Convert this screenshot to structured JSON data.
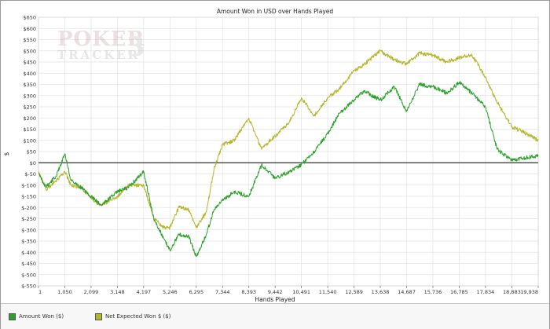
{
  "chart_data": {
    "type": "line",
    "title": "Amount Won in USD over Hands Played",
    "xlabel": "Hands Played",
    "ylabel": "$",
    "xlim": [
      1,
      19938
    ],
    "ylim": [
      -550,
      650
    ],
    "x_ticks": [
      1,
      1050,
      2099,
      3148,
      4197,
      5246,
      6295,
      7344,
      8393,
      9442,
      10491,
      11540,
      12589,
      13638,
      14687,
      15736,
      16785,
      17834,
      18883,
      19938
    ],
    "x_tick_labels": [
      "1",
      "1,050",
      "2,099",
      "3,148",
      "4,197",
      "5,246",
      "6,295",
      "7,344",
      "8,393",
      "9,442",
      "10,491",
      "11,540",
      "12,589",
      "13,638",
      "14,687",
      "15,736",
      "16,785",
      "17,834",
      "18,883",
      "19,938"
    ],
    "y_ticks": [
      650,
      600,
      550,
      500,
      450,
      400,
      350,
      300,
      250,
      200,
      150,
      100,
      50,
      0,
      -50,
      -100,
      -150,
      -200,
      -250,
      -300,
      -350,
      -400,
      -450,
      -500,
      -550
    ],
    "y_tick_labels": [
      "$650",
      "$600",
      "$550",
      "$500",
      "$450",
      "$400",
      "$350",
      "$300",
      "$250",
      "$200",
      "$150",
      "$100",
      "$50",
      "$0",
      "$-50",
      "$-100",
      "$-150",
      "$-200",
      "$-250",
      "$-300",
      "$-350",
      "$-400",
      "$-450",
      "$-500",
      "$-550"
    ],
    "grid": true,
    "legend_position": "bottom-left",
    "series": [
      {
        "name": "Amount Won ($)",
        "color": "#2ca02c",
        "x": [
          1,
          300,
          700,
          1050,
          1300,
          1700,
          2099,
          2500,
          3148,
          3600,
          4197,
          4600,
          5000,
          5246,
          5600,
          6000,
          6295,
          6700,
          7000,
          7344,
          7800,
          8393,
          8900,
          9442,
          10000,
          10491,
          11000,
          11540,
          12000,
          12589,
          13000,
          13638,
          14200,
          14687,
          15200,
          15736,
          16300,
          16785,
          17300,
          17834,
          18300,
          18883,
          19300,
          19938
        ],
        "y": [
          -50,
          -110,
          -60,
          40,
          -80,
          -110,
          -150,
          -190,
          -130,
          -110,
          -40,
          -250,
          -340,
          -390,
          -320,
          -330,
          -420,
          -320,
          -210,
          -170,
          -130,
          -150,
          -10,
          -70,
          -40,
          -10,
          50,
          130,
          220,
          280,
          320,
          280,
          340,
          230,
          350,
          340,
          310,
          360,
          310,
          250,
          60,
          10,
          20,
          30
        ]
      },
      {
        "name": "Net Expected Won $ ($)",
        "color": "#b5b52a",
        "x": [
          1,
          300,
          700,
          1050,
          1300,
          1700,
          2099,
          2500,
          3148,
          3600,
          4197,
          4600,
          5000,
          5246,
          5600,
          6000,
          6295,
          6700,
          7000,
          7344,
          7800,
          8393,
          8900,
          9442,
          10000,
          10491,
          11000,
          11540,
          12000,
          12589,
          13000,
          13638,
          14200,
          14687,
          15200,
          15736,
          16300,
          16785,
          17300,
          17834,
          18300,
          18883,
          19300,
          19938
        ],
        "y": [
          -40,
          -120,
          -80,
          -40,
          -100,
          -110,
          -160,
          -190,
          -150,
          -100,
          -100,
          -250,
          -290,
          -290,
          -200,
          -210,
          -290,
          -220,
          -30,
          80,
          100,
          200,
          60,
          120,
          180,
          290,
          210,
          290,
          330,
          410,
          440,
          500,
          460,
          440,
          490,
          480,
          450,
          470,
          480,
          380,
          270,
          160,
          140,
          100
        ]
      }
    ]
  },
  "watermark": {
    "line1": "POKER",
    "line2": "TRACKER",
    "mark": "3"
  },
  "colors": {
    "plot_background": "#ffffff",
    "grid": "#e3e3e3",
    "zero_line": "#000000"
  }
}
